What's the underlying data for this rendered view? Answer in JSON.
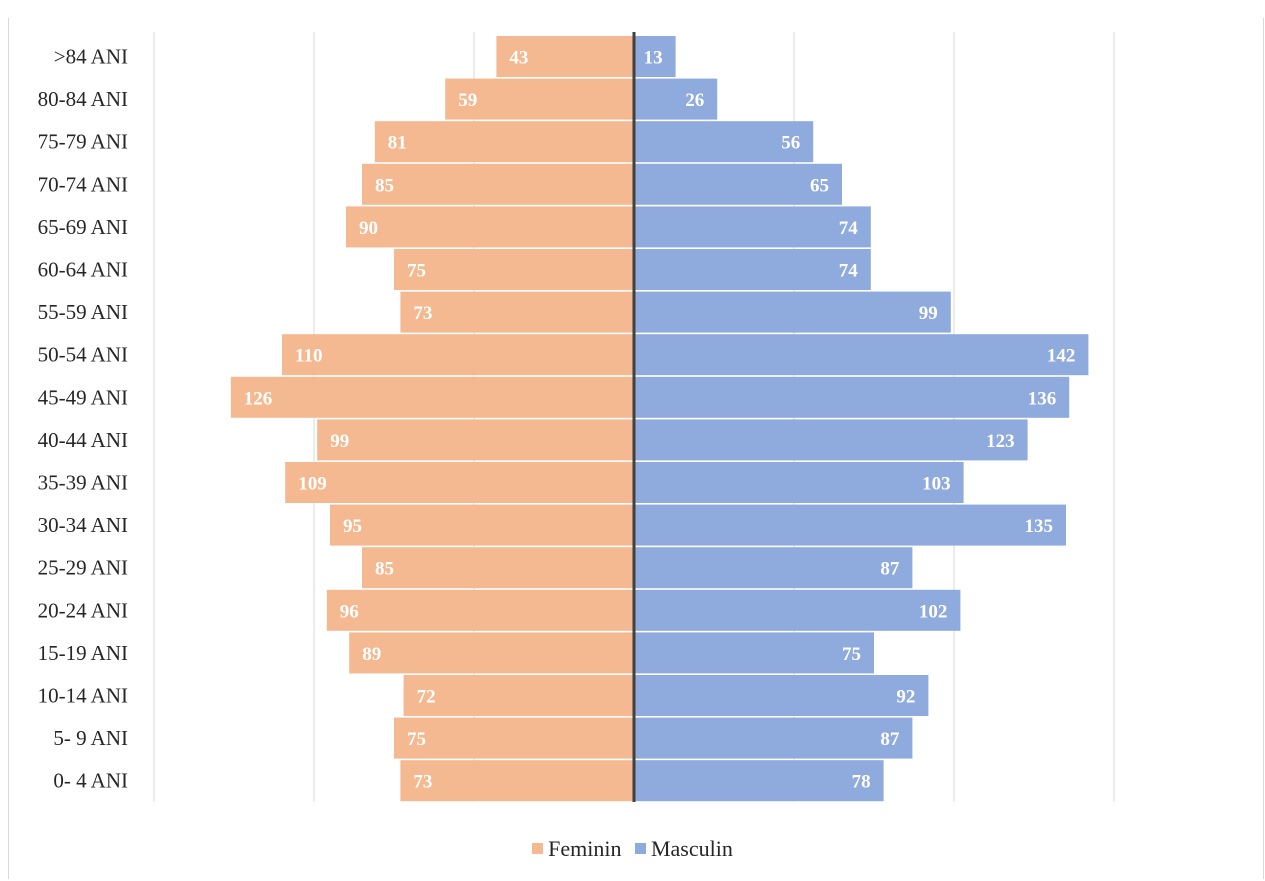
{
  "chart_data": {
    "type": "bar",
    "orientation": "horizontal",
    "layout": "population-pyramid",
    "categories": [
      "0- 4 ANI",
      "5- 9 ANI",
      "10-14 ANI",
      "15-19 ANI",
      "20-24 ANI",
      "25-29 ANI",
      "30-34 ANI",
      "35-39 ANI",
      "40-44 ANI",
      "45-49 ANI",
      "50-54 ANI",
      "55-59 ANI",
      "60-64 ANI",
      "65-69 ANI",
      "70-74 ANI",
      "75-79 ANI",
      "80-84 ANI",
      ">84 ANI"
    ],
    "series": [
      {
        "name": "Feminin",
        "color": "#f4b990",
        "values": [
          73,
          75,
          72,
          89,
          96,
          85,
          95,
          109,
          99,
          126,
          110,
          73,
          75,
          90,
          85,
          81,
          59,
          43
        ]
      },
      {
        "name": "Masculin",
        "color": "#8faadc",
        "values": [
          78,
          87,
          92,
          75,
          102,
          87,
          135,
          103,
          123,
          136,
          142,
          99,
          74,
          74,
          65,
          56,
          26,
          13
        ]
      }
    ],
    "xlim": [
      -150,
      150
    ],
    "grid": "vertical",
    "legend_position": "bottom",
    "data_labels": true
  }
}
